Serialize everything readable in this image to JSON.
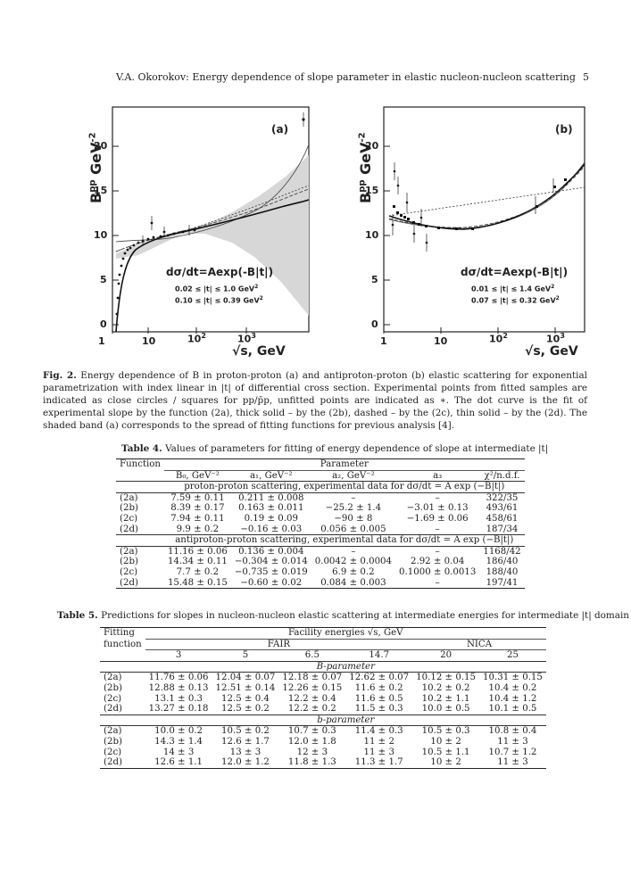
{
  "header": {
    "title": "V.A. Okorokov: Energy dependence of slope parameter in elastic nucleon-nucleon scattering",
    "page_number": "5"
  },
  "figure": {
    "panels": [
      {
        "label": "(a)",
        "ylabel_main": "B",
        "ylabel_sup": "pp",
        "ylabel_unit": "GeV",
        "ylabel_unit_sup": "-2",
        "yticks": [
          "0",
          "5",
          "10",
          "15",
          "20"
        ],
        "xticks": [
          "1",
          "10",
          "10",
          "10"
        ],
        "xtick_sups": [
          "",
          "",
          "2",
          "3"
        ],
        "xlabel": "√s, GeV",
        "formula": "dσ/dt=Aexp(-B|t|)",
        "range1": "0.02 ≤ |t| ≤ 1.0 GeV",
        "range1_sup": "2",
        "range2": "0.10 ≤ |t| ≤ 0.39 GeV",
        "range2_sup": "2"
      },
      {
        "label": "(b)",
        "ylabel_main": "B",
        "ylabel_sup": "pp",
        "ylabel_unit": "GeV",
        "ylabel_unit_sup": "-2",
        "yticks": [
          "0",
          "5",
          "10",
          "15",
          "20"
        ],
        "xticks": [
          "1",
          "10",
          "10",
          "10"
        ],
        "xtick_sups": [
          "",
          "",
          "2",
          "3"
        ],
        "xlabel": "√s, GeV",
        "formula": "dσ/dt=Aexp(-B|t|)",
        "range1": "0.01 ≤ |t| ≤ 1.4 GeV",
        "range1_sup": "2",
        "range2": "0.07 ≤ |t| ≤ 0.32 GeV",
        "range2_sup": "2"
      }
    ],
    "caption_label": "Fig. 2.",
    "caption_text": "Energy dependence of B in proton-proton (a) and antiproton-proton (b) elastic scattering for exponential parametrization with index linear in |t| of differential cross section. Experimental points from fitted samples are indicated as close circles / squares for pp/p̄p, unfitted points are indicated as ∗. The dot curve is the fit of experimental slope by the function (2a), thick solid – by the (2b), dashed – by the (2c), thin solid – by the (2d). The shaded band (a) corresponds to the spread of fitting functions for previous analysis [4]."
  },
  "table4": {
    "caption_label": "Table 4.",
    "caption_text": "Values of parameters for fitting of energy dependence of slope at intermediate |t|",
    "col_function": "Function",
    "col_parameter": "Parameter",
    "subheaders": [
      "B₀, GeV⁻²",
      "a₁, GeV⁻²",
      "a₂, GeV⁻²",
      "a₃",
      "χ²/n.d.f."
    ],
    "section1": "proton-proton scattering, experimental data for dσ/dt = A exp (−B|t|)",
    "rows1": [
      [
        "(2a)",
        "7.59 ± 0.11",
        "0.211 ± 0.008",
        "–",
        "–",
        "322/35"
      ],
      [
        "(2b)",
        "8.39 ± 0.17",
        "0.163 ± 0.011",
        "−25.2 ± 1.4",
        "−3.01 ± 0.13",
        "493/61"
      ],
      [
        "(2c)",
        "7.94 ± 0.11",
        "0.19 ± 0.09",
        "−90 ± 8",
        "−1.69 ± 0.06",
        "458/61"
      ],
      [
        "(2d)",
        "9.9 ± 0.2",
        "−0.16 ± 0.03",
        "0.056 ± 0.005",
        "–",
        "187/34"
      ]
    ],
    "section2": "antiproton-proton scattering, experimental data for dσ/dt = A exp (−B|t|)",
    "rows2": [
      [
        "(2a)",
        "11.16 ± 0.06",
        "0.136 ± 0.004",
        "–",
        "–",
        "1168/42"
      ],
      [
        "(2b)",
        "14.34 ± 0.11",
        "−0.304 ± 0.014",
        "0.0042 ± 0.0004",
        "2.92 ± 0.04",
        "186/40"
      ],
      [
        "(2c)",
        "7.7 ± 0.2",
        "−0.735 ± 0.019",
        "6.9 ± 0.2",
        "0.1000 ± 0.0013",
        "188/40"
      ],
      [
        "(2d)",
        "15.48 ± 0.15",
        "−0.60 ± 0.02",
        "0.084 ± 0.003",
        "–",
        "197/41"
      ]
    ]
  },
  "table5": {
    "caption_label": "Table 5.",
    "caption_text": "Predictions for slopes in nucleon-nucleon elastic scattering at intermediate energies for intermediate |t| domain",
    "col_fitting": "Fitting",
    "col_function": "function",
    "col_facility": "Facility energies √s, GeV",
    "group_fair": "FAIR",
    "group_nica": "NICA",
    "energies": [
      "3",
      "5",
      "6.5",
      "14.7",
      "20",
      "25"
    ],
    "section1": "B-parameter",
    "rows1": [
      [
        "(2a)",
        "11.76 ± 0.06",
        "12.04 ± 0.07",
        "12.18 ± 0.07",
        "12.62 ± 0.07",
        "10.12 ± 0.15",
        "10.31 ± 0.15"
      ],
      [
        "(2b)",
        "12.88 ± 0.13",
        "12.51 ± 0.14",
        "12.26 ± 0.15",
        "11.6 ± 0.2",
        "10.2 ± 0.2",
        "10.4 ± 0.2"
      ],
      [
        "(2c)",
        "13.1 ± 0.3",
        "12.5 ± 0.4",
        "12.2 ± 0.4",
        "11.6 ± 0.5",
        "10.2 ± 1.1",
        "10.4 ± 1.2"
      ],
      [
        "(2d)",
        "13.27 ± 0.18",
        "12.5 ± 0.2",
        "12.2 ± 0.2",
        "11.5 ± 0.3",
        "10.0 ± 0.5",
        "10.1 ± 0.5"
      ]
    ],
    "section2": "b-parameter",
    "rows2": [
      [
        "(2a)",
        "10.0 ± 0.2",
        "10.5 ± 0.2",
        "10.7 ± 0.3",
        "11.4 ± 0.3",
        "10.5 ± 0.3",
        "10.8 ± 0.4"
      ],
      [
        "(2b)",
        "14.3 ± 1.4",
        "12.6 ± 1.7",
        "12.0 ± 1.8",
        "11 ± 2",
        "10 ± 2",
        "11 ± 3"
      ],
      [
        "(2c)",
        "14 ± 3",
        "13 ± 3",
        "12 ± 3",
        "11 ± 3",
        "10.5 ± 1.1",
        "10.7 ± 1.2"
      ],
      [
        "(2d)",
        "12.6 ± 1.1",
        "12.0 ± 1.2",
        "11.8 ± 1.3",
        "11.3 ± 1.7",
        "10 ± 2",
        "11 ± 3"
      ]
    ]
  }
}
